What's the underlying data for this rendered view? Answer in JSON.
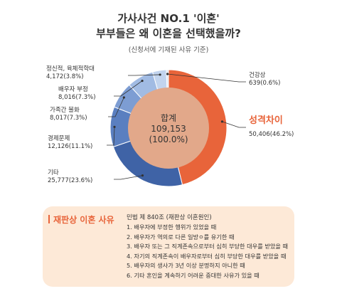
{
  "header": {
    "title_line1": "가사사건 NO.1 '이혼'",
    "title_line2": "부부들은 왜 이혼을 선택했을까?",
    "subtitle": "(신청서에 기재된 사유 기준)"
  },
  "chart_data": {
    "type": "pie",
    "donut": true,
    "center_label": "합계",
    "center_value": "109,153",
    "center_percent": "(100.0%)",
    "slices": [
      {
        "name": "성격차이",
        "value": 50406,
        "value_text": "50,406(46.2%)",
        "percent": 46.2,
        "color": "#e8643a"
      },
      {
        "name": "기타",
        "value": 25777,
        "value_text": "25,777(23.6%)",
        "percent": 23.6,
        "color": "#3f63a6"
      },
      {
        "name": "경제문제",
        "value": 12126,
        "value_text": "12,126(11.1%)",
        "percent": 11.1,
        "color": "#5a7fc0"
      },
      {
        "name": "가족간 불화",
        "value": 8017,
        "value_text": "8,017(7.3%)",
        "percent": 7.3,
        "color": "#7d9dd3"
      },
      {
        "name": "배우자 부정",
        "value": 8016,
        "value_text": "8,016(7.3%)",
        "percent": 7.3,
        "color": "#a1bbe3"
      },
      {
        "name": "정신적, 육체적학대",
        "value": 4172,
        "value_text": "4,172(3.8%)",
        "percent": 3.8,
        "color": "#c2d4ee"
      },
      {
        "name": "건강상",
        "value": 639,
        "value_text": "639(0.6%)",
        "percent": 0.6,
        "color": "#dde7f5"
      }
    ],
    "colors": {
      "inner": "#e2a88a",
      "leader": "#333333"
    }
  },
  "reasons_box": {
    "title": "재판상 이혼 사유",
    "law": "민법 제 840조 (재판상 이혼원인)",
    "items": [
      "1. 배우자에 부정한 행위가 있었을 때",
      "2. 배우자가 역의로 다른 일방ㅇ를 유기한 때",
      "3. 배우자 또는 그 직계존속으로부터 심히 부당한 대우를 받았을 때",
      "4. 자기의 직계존속이 배우자로부터 심히 부당한 대우를 받았을 때",
      "5. 배우자의 생사가 3년 이상 분명하지 아니한 때",
      "6. 기타 혼인을 계속하기 어려운 중대한 사유가 있을 때"
    ]
  }
}
